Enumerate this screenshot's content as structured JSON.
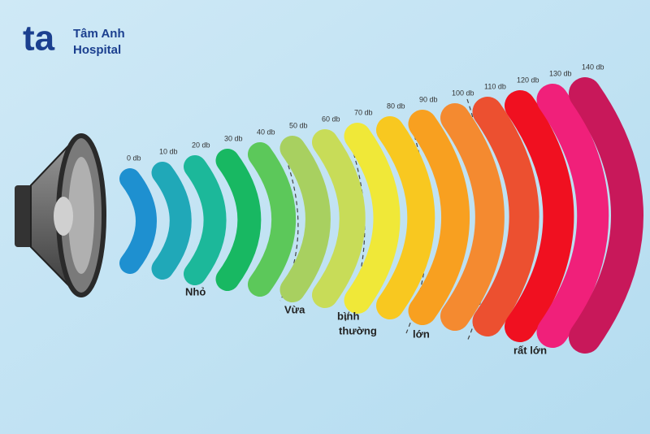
{
  "logo": {
    "mark": "ta",
    "name_line1": "Tâm Anh",
    "name_line2": "Hospital"
  },
  "levels": [
    {
      "label": "0 db",
      "color": "#1e90d0"
    },
    {
      "label": "10 db",
      "color": "#20a8b8"
    },
    {
      "label": "20 db",
      "color": "#1cb89a"
    },
    {
      "label": "30 db",
      "color": "#18b862"
    },
    {
      "label": "40 db",
      "color": "#5cc85a"
    },
    {
      "label": "50 db",
      "color": "#a8d060"
    },
    {
      "label": "60 db",
      "color": "#c8dc58"
    },
    {
      "label": "70 db",
      "color": "#f0e838"
    },
    {
      "label": "80 db",
      "color": "#f8c820"
    },
    {
      "label": "90 db",
      "color": "#f8a020"
    },
    {
      "label": "100 db",
      "color": "#f48a30"
    },
    {
      "label": "110 db",
      "color": "#ec5030"
    },
    {
      "label": "120 db",
      "color": "#f01020"
    },
    {
      "label": "130 db",
      "color": "#f0207a"
    },
    {
      "label": "140 db",
      "color": "#c8185a"
    }
  ],
  "groups": [
    {
      "lines": [
        "Nhỏ"
      ]
    },
    {
      "lines": [
        "Vừa"
      ]
    },
    {
      "lines": [
        "bình",
        "thường"
      ]
    },
    {
      "lines": [
        "lớn"
      ]
    },
    {
      "lines": [
        "rất lớn"
      ]
    }
  ]
}
